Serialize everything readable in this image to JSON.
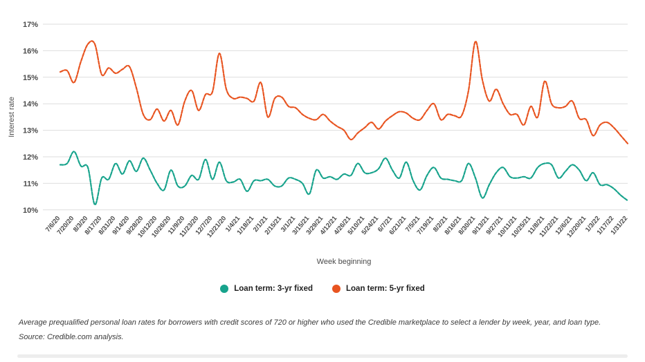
{
  "caption": "Average prequalified personal loan rates for borrowers with credit scores of 720 or higher who used the Credible marketplace to select a lender by week, year, and loan type. Source: Credible.com analysis.",
  "chart_data": {
    "type": "line",
    "title": "",
    "xlabel": "Week beginning",
    "ylabel": "Interest rate",
    "ylim": [
      10,
      17
    ],
    "y_tick_format": "percent",
    "grid": true,
    "legend_position": "bottom",
    "line_style": "dashed",
    "x_labels_every": 2,
    "x": [
      "7/6/20",
      "7/13/20",
      "7/20/20",
      "7/27/20",
      "8/3/20",
      "8/10/20",
      "8/17/20",
      "8/24/20",
      "8/31/20",
      "9/7/20",
      "9/14/20",
      "9/21/20",
      "9/28/20",
      "10/5/20",
      "10/12/20",
      "10/19/20",
      "10/26/20",
      "11/2/20",
      "11/9/20",
      "11/16/20",
      "11/23/20",
      "11/30/20",
      "12/7/20",
      "12/14/20",
      "12/21/20",
      "12/28/20",
      "1/4/21",
      "1/11/21",
      "1/18/21",
      "1/25/21",
      "2/1/21",
      "2/8/21",
      "2/15/21",
      "2/22/21",
      "3/1/21",
      "3/8/21",
      "3/15/21",
      "3/22/21",
      "3/29/21",
      "4/5/21",
      "4/12/21",
      "4/19/21",
      "4/26/21",
      "5/3/21",
      "5/10/21",
      "5/17/21",
      "5/24/21",
      "5/31/21",
      "6/7/21",
      "6/14/21",
      "6/21/21",
      "6/28/21",
      "7/5/21",
      "7/12/21",
      "7/19/21",
      "7/26/21",
      "8/2/21",
      "8/9/21",
      "8/16/21",
      "8/23/21",
      "8/30/21",
      "9/6/21",
      "9/13/21",
      "9/20/21",
      "9/27/21",
      "10/4/21",
      "10/11/21",
      "10/18/21",
      "10/25/21",
      "11/1/21",
      "11/8/21",
      "11/15/21",
      "11/22/21",
      "11/29/21",
      "12/6/21",
      "12/13/21",
      "12/20/21",
      "12/27/21",
      "1/3/22",
      "1/10/22",
      "1/17/22",
      "1/24/22",
      "1/31/22"
    ],
    "series": [
      {
        "name": "Loan term: 3-yr fixed",
        "color": "#17A38C",
        "values": [
          11.7,
          11.75,
          12.2,
          11.65,
          11.6,
          10.2,
          11.2,
          11.15,
          11.75,
          11.35,
          11.85,
          11.45,
          11.95,
          11.5,
          11.0,
          10.75,
          11.5,
          10.9,
          10.9,
          11.3,
          11.15,
          11.9,
          11.15,
          11.8,
          11.1,
          11.05,
          11.15,
          10.7,
          11.1,
          11.1,
          11.15,
          10.9,
          10.9,
          11.2,
          11.15,
          11.0,
          10.6,
          11.5,
          11.2,
          11.25,
          11.15,
          11.35,
          11.3,
          11.75,
          11.4,
          11.4,
          11.55,
          11.95,
          11.5,
          11.2,
          11.8,
          11.1,
          10.75,
          11.3,
          11.6,
          11.2,
          11.15,
          11.1,
          11.1,
          11.75,
          11.2,
          10.45,
          10.95,
          11.4,
          11.6,
          11.25,
          11.2,
          11.25,
          11.2,
          11.6,
          11.75,
          11.7,
          11.2,
          11.45,
          11.7,
          11.5,
          11.1,
          11.4,
          10.95,
          10.95,
          10.8,
          10.55,
          10.35
        ]
      },
      {
        "name": "Loan term: 5-yr fixed",
        "color": "#E85420",
        "values": [
          15.2,
          15.25,
          14.8,
          15.6,
          16.25,
          16.25,
          15.1,
          15.35,
          15.15,
          15.3,
          15.4,
          14.6,
          13.6,
          13.4,
          13.8,
          13.35,
          13.75,
          13.2,
          14.1,
          14.5,
          13.75,
          14.35,
          14.45,
          15.9,
          14.55,
          14.2,
          14.25,
          14.2,
          14.1,
          14.8,
          13.5,
          14.2,
          14.25,
          13.9,
          13.85,
          13.6,
          13.45,
          13.4,
          13.6,
          13.35,
          13.15,
          13.0,
          12.65,
          12.9,
          13.1,
          13.3,
          13.05,
          13.35,
          13.55,
          13.7,
          13.65,
          13.45,
          13.4,
          13.75,
          14.0,
          13.4,
          13.6,
          13.55,
          13.55,
          14.5,
          16.35,
          14.9,
          14.1,
          14.55,
          14.0,
          13.6,
          13.6,
          13.2,
          13.9,
          13.5,
          14.85,
          14.0,
          13.85,
          13.9,
          14.1,
          13.45,
          13.4,
          12.8,
          13.2,
          13.3,
          13.1,
          12.8,
          12.5
        ]
      }
    ]
  }
}
